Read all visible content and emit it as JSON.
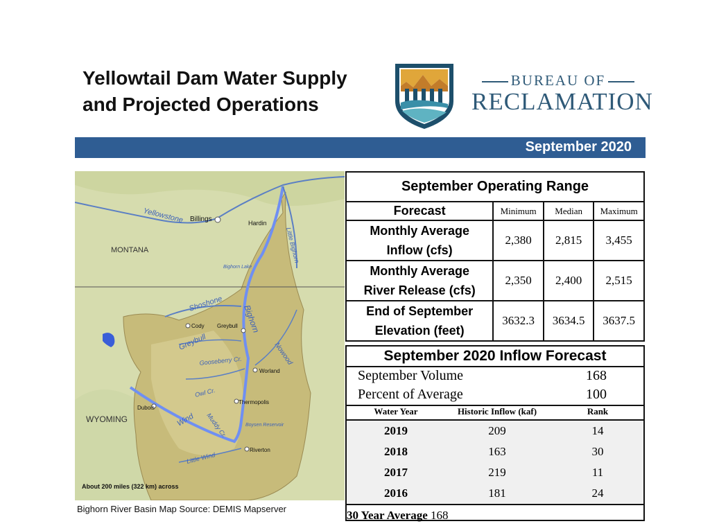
{
  "title_line1": "Yellowtail Dam Water Supply",
  "title_line2": "and Projected Operations",
  "agency_line1": "BUREAU OF",
  "agency_line2": "RECLAMATION",
  "banner_date": "September 2020",
  "map": {
    "labels": {
      "billings": "Billings",
      "hardin": "Hardin",
      "yellowstone": "Yellowstone",
      "montana": "MONTANA",
      "little_bighorn": "Little Bighorn",
      "bighorn_lake": "Bighorn Lake",
      "shoshone": "Shoshone",
      "cody": "Cody",
      "greybull_town": "Greybull",
      "greybull_river": "Greybull",
      "bighorn": "Bighorn",
      "nowood": "Nowood",
      "gooseberry": "Gooseberry Cr.",
      "worland": "Worland",
      "owl": "Owl Cr.",
      "thermopolis": "Thermopolis",
      "dubois": "Dubois",
      "wyoming": "WYOMING",
      "wind": "Wind",
      "muddy": "Muddy Cr.",
      "boysen": "Boysen Reservoir",
      "riverton": "Riverton",
      "little_wind": "Little Wind",
      "scale": "About 200 miles (322 km) across"
    },
    "caption": "Bighorn River Basin Map Source: DEMIS Mapserver"
  },
  "operating_range": {
    "title": "September Operating Range",
    "forecast_label": "Forecast",
    "columns": [
      "Minimum",
      "Median",
      "Maximum"
    ],
    "rows": [
      {
        "label1": "Monthly Average",
        "label2": "Inflow (cfs)",
        "values": [
          "2,380",
          "2,815",
          "3,455"
        ]
      },
      {
        "label1": "Monthly Average",
        "label2": "River Release (cfs)",
        "values": [
          "2,350",
          "2,400",
          "2,515"
        ]
      },
      {
        "label1": "End of September",
        "label2": "Elevation (feet)",
        "values": [
          "3632.3",
          "3634.5",
          "3637.5"
        ]
      }
    ]
  },
  "inflow_forecast": {
    "title": "September 2020 Inflow Forecast",
    "volume_label": "September Volume",
    "volume_value": "168",
    "percent_label": "Percent of Average",
    "percent_value": "100",
    "headers": [
      "Water Year",
      "Historic Inflow (kaf)",
      "Rank"
    ],
    "rows": [
      {
        "year": "2019",
        "inflow": "209",
        "rank": "14"
      },
      {
        "year": "2018",
        "inflow": "163",
        "rank": "30"
      },
      {
        "year": "2017",
        "inflow": "219",
        "rank": "11"
      },
      {
        "year": "2016",
        "inflow": "181",
        "rank": "24"
      }
    ],
    "avg_label": "30 Year Average",
    "avg_value": "168"
  }
}
